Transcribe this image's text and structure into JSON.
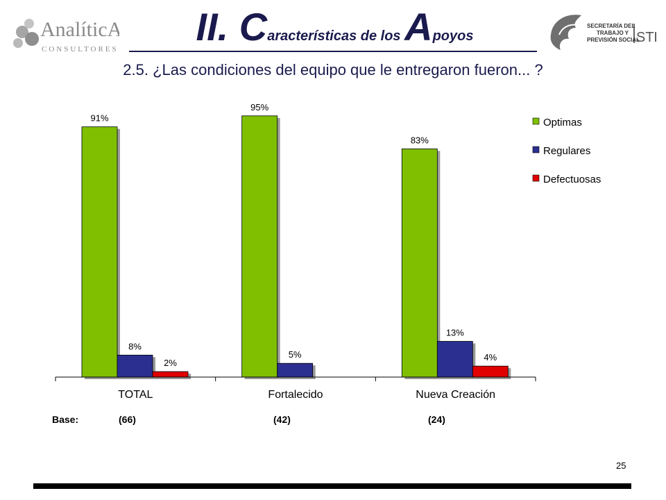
{
  "header": {
    "logo_left": {
      "name": "AnalíticA",
      "tagline": "CONSULTORES"
    },
    "title_parts": [
      "II. C",
      "aracterísticas de los ",
      "A",
      "poyos"
    ],
    "logo_right": {
      "line1": "SECRETARÍA DEL",
      "line2": "TRABAJO Y",
      "line3": "PREVISIÓN SOCIAL",
      "mark": "STPS"
    }
  },
  "subtitle": "2.5. ¿Las condiciones del equipo que le entregaron fueron... ?",
  "chart_data": {
    "type": "bar",
    "categories": [
      "TOTAL",
      "Fortalecido",
      "Nueva Creación"
    ],
    "series": [
      {
        "name": "Optimas",
        "values": [
          91,
          95,
          83
        ],
        "labels": [
          "91%",
          "95%",
          "83%"
        ],
        "color": "#7fbf00"
      },
      {
        "name": "Regulares",
        "values": [
          8,
          5,
          13
        ],
        "labels": [
          "8%",
          "5%",
          "13%"
        ],
        "color": "#2b2f8f"
      },
      {
        "name": "Defectuosas",
        "values": [
          2,
          0,
          4
        ],
        "labels": [
          "2%",
          "",
          "4%"
        ],
        "color": "#e00000"
      }
    ],
    "ylim": [
      0,
      100
    ],
    "grid": false,
    "legend": "top-right"
  },
  "base": {
    "label": "Base:",
    "values": [
      "(66)",
      "(42)",
      "(24)"
    ]
  },
  "page_number": "25"
}
